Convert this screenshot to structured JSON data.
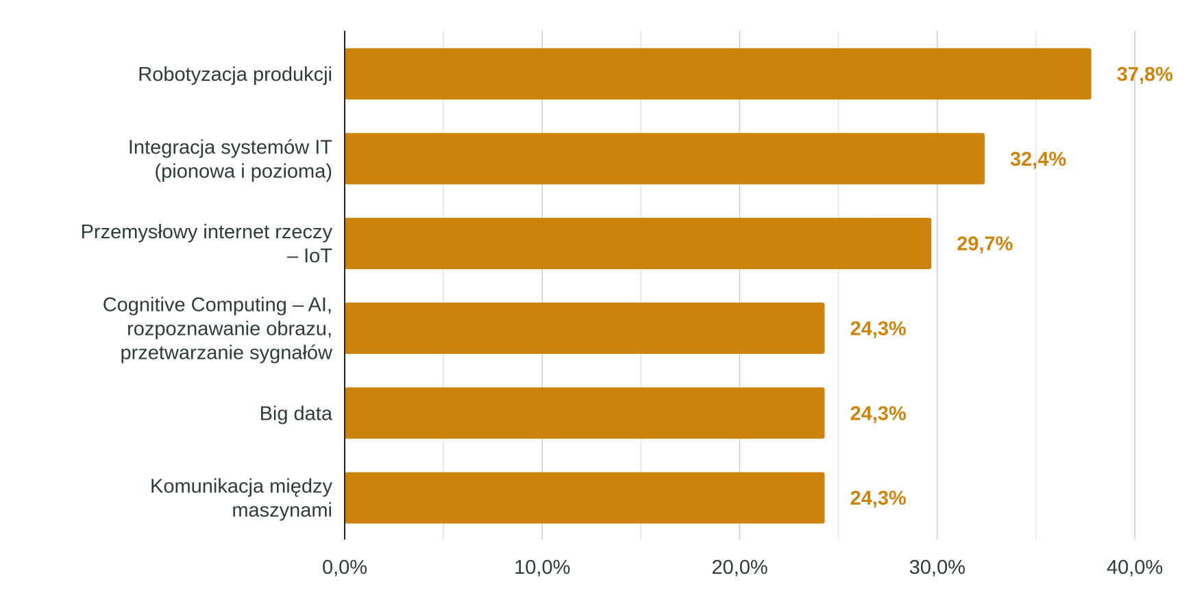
{
  "chart_data": {
    "type": "bar",
    "orientation": "horizontal",
    "title": "",
    "xlabel": "",
    "ylabel": "",
    "categories": [
      [
        "Robotyzacja produkcji"
      ],
      [
        "Integracja systemów IT",
        "(pionowa i pozioma)"
      ],
      [
        "Przemysłowy internet rzeczy",
        "– IoT"
      ],
      [
        "Cognitive Computing – AI,",
        "rozpoznawanie obrazu,",
        "przetwarzanie sygnałów"
      ],
      [
        "Big data"
      ],
      [
        "Komunikacja między",
        "maszynami"
      ]
    ],
    "values": [
      37.8,
      32.4,
      29.7,
      24.3,
      24.3,
      24.3
    ],
    "value_labels": [
      "37,8%",
      "32,4%",
      "29,7%",
      "24,3%",
      "24,3%",
      "24,3%"
    ],
    "xlim": [
      0,
      40
    ],
    "ticks": [
      0,
      10,
      20,
      30,
      40
    ],
    "tick_labels": [
      "0,0%",
      "10,0%",
      "20,0%",
      "30,0%",
      "40,0%"
    ],
    "minor_grid_step": 5,
    "grid": true,
    "legend": "none",
    "colors": {
      "bar": "#cc840e",
      "value_label": "#cc840e",
      "text": "#2e3d38",
      "grid_major": "#cccccc",
      "grid_minor": "#e3e3e3",
      "axis": "#222222"
    }
  }
}
